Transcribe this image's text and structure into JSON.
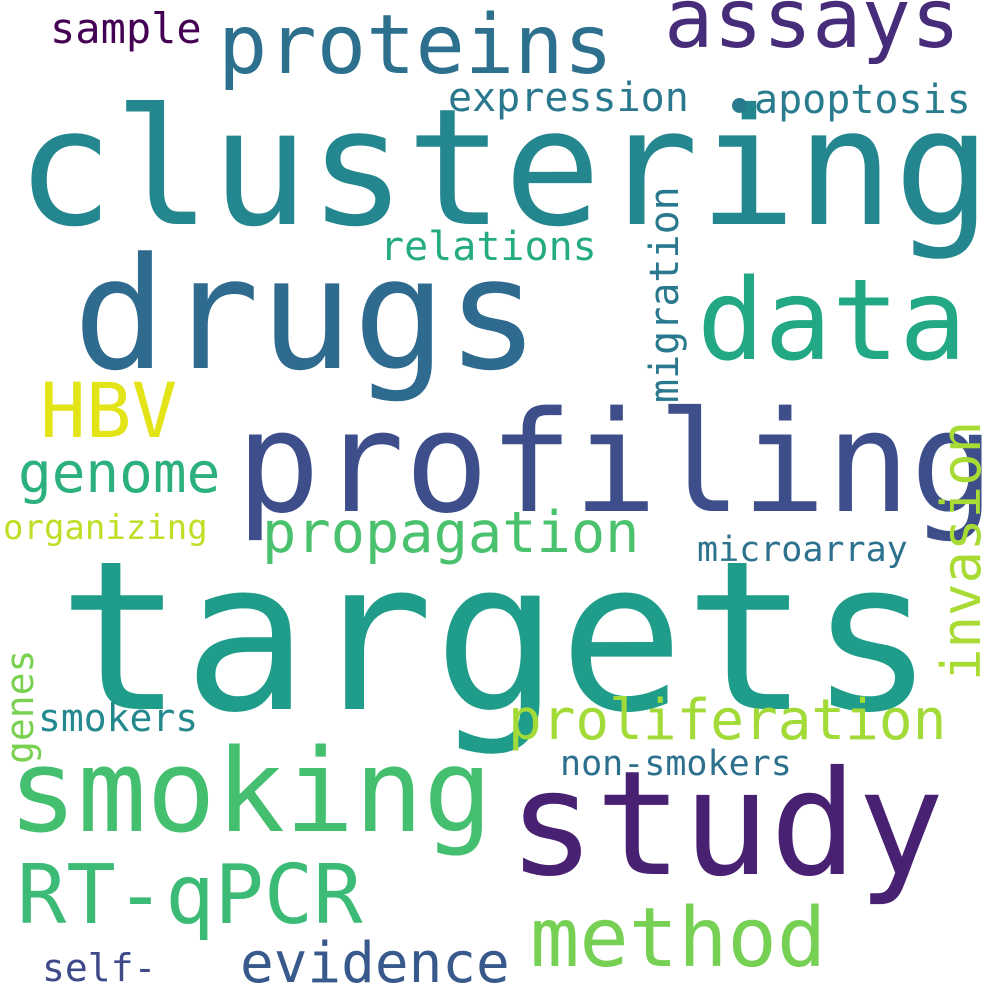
{
  "words": {
    "clustering": "clustering",
    "targets": "targets",
    "drugs": "drugs",
    "profiling": "profiling",
    "study": "study",
    "data": "data",
    "smoking": "smoking",
    "proteins": "proteins",
    "assays": "assays",
    "method": "method",
    "rtqpcr": "RT-qPCR",
    "hbv": "HBV",
    "proliferation": "proliferation",
    "propagation": "propagation",
    "evidence": "evidence",
    "genome": "genome",
    "invasion": "invasion",
    "expression": "expression",
    "apoptosis": "apoptosis",
    "relations": "relations",
    "migration": "migration",
    "sample": "sample",
    "microarray": "microarray",
    "smokers": "smokers",
    "nonsmokers": "non-smokers",
    "organizing": "organizing",
    "genes": "genes",
    "self": "self-"
  },
  "colors": {
    "background": "#ffffff",
    "palette": [
      "#440154",
      "#482173",
      "#3e4989",
      "#2d708e",
      "#24868e",
      "#1f9d8a",
      "#44bf70",
      "#a2da37",
      "#e2e418"
    ]
  }
}
